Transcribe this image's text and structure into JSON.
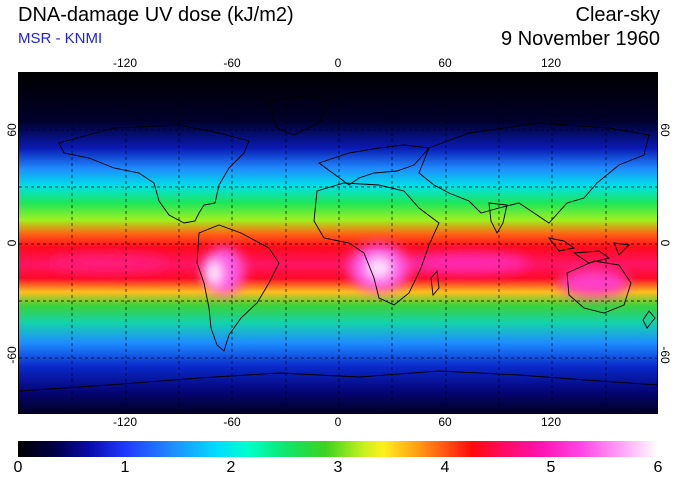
{
  "header": {
    "title": "DNA-damage UV dose (kJ/m2)",
    "credit": "MSR - KNMI",
    "condition": "Clear-sky",
    "date": "9 November 1960"
  },
  "map": {
    "projection": "equirectangular",
    "lon_range": [
      -180,
      180
    ],
    "lat_range": [
      -90,
      90
    ],
    "lon_ticks": [
      -120,
      -60,
      0,
      60,
      120
    ],
    "lat_ticks": [
      60,
      0,
      -60
    ],
    "gridlines": "dashed",
    "coastlines": true
  },
  "colorbar": {
    "min": 0,
    "max": 6,
    "ticks": [
      "0",
      "1",
      "2",
      "3",
      "4",
      "5",
      "6"
    ]
  }
}
